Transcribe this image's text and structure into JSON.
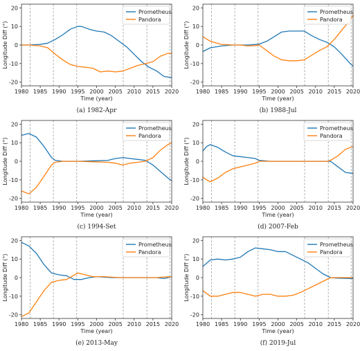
{
  "figure": {
    "colors": {
      "prometheus": "#1f77b4",
      "pandora": "#ff7f0e",
      "event_line": "#a0a0a0"
    },
    "legend_labels": [
      "Prometheus",
      "Pandora"
    ],
    "event_years": [
      1982.3,
      1988.5,
      1994.7,
      2007.1,
      2013.4,
      2019.5
    ]
  },
  "chart_data": [
    {
      "type": "line",
      "caption": "(a) 1982-Apr",
      "xlabel": "Time (year)",
      "ylabel": "Longitude Diff (°)",
      "xlim": [
        1980,
        2020
      ],
      "ylim": [
        -22,
        22
      ],
      "xticks": [
        1980,
        1985,
        1990,
        1995,
        2000,
        2005,
        2010,
        2015,
        2020
      ],
      "yticks": [
        -20,
        -10,
        0,
        10,
        20
      ],
      "legend": "top-right",
      "grid": false,
      "series": [
        {
          "name": "Prometheus",
          "points": [
            [
              1980,
              0
            ],
            [
              1982,
              0
            ],
            [
              1985,
              0.3
            ],
            [
              1987,
              1
            ],
            [
              1989,
              3
            ],
            [
              1991,
              5.5
            ],
            [
              1993,
              8.5
            ],
            [
              1995,
              10
            ],
            [
              1996,
              10
            ],
            [
              1998,
              8.5
            ],
            [
              2000,
              7.5
            ],
            [
              2002,
              7
            ],
            [
              2004,
              5
            ],
            [
              2006,
              2
            ],
            [
              2008,
              -1
            ],
            [
              2010,
              -5
            ],
            [
              2012,
              -9
            ],
            [
              2014,
              -12
            ],
            [
              2016,
              -14
            ],
            [
              2018,
              -17
            ],
            [
              2020,
              -17.5
            ]
          ]
        },
        {
          "name": "Pandora",
          "points": [
            [
              1980,
              0
            ],
            [
              1982,
              0
            ],
            [
              1985,
              -0.5
            ],
            [
              1987,
              -1.5
            ],
            [
              1989,
              -5
            ],
            [
              1991,
              -8
            ],
            [
              1993,
              -10.5
            ],
            [
              1995,
              -11.5
            ],
            [
              1997,
              -12
            ],
            [
              1999,
              -12.5
            ],
            [
              2001,
              -14.5
            ],
            [
              2003,
              -14
            ],
            [
              2005,
              -14.5
            ],
            [
              2007,
              -14
            ],
            [
              2009,
              -12.5
            ],
            [
              2011,
              -11
            ],
            [
              2013,
              -10
            ],
            [
              2015,
              -9
            ],
            [
              2017,
              -6
            ],
            [
              2019,
              -4.5
            ],
            [
              2020,
              -4.5
            ]
          ]
        }
      ]
    },
    {
      "type": "line",
      "caption": "(b) 1988-Jul",
      "xlabel": "Time (year)",
      "ylabel": "Longitude Diff (°)",
      "xlim": [
        1980,
        2020
      ],
      "ylim": [
        -22,
        22
      ],
      "xticks": [
        1980,
        1985,
        1990,
        1995,
        2000,
        2005,
        2010,
        2015,
        2020
      ],
      "yticks": [
        -20,
        -10,
        0,
        10,
        20
      ],
      "legend": "top-right",
      "grid": false,
      "series": [
        {
          "name": "Prometheus",
          "points": [
            [
              1980,
              -3.5
            ],
            [
              1982,
              -1.5
            ],
            [
              1985,
              -0.5
            ],
            [
              1988,
              0
            ],
            [
              1990,
              0
            ],
            [
              1992,
              0
            ],
            [
              1994,
              0.3
            ],
            [
              1995,
              0.5
            ],
            [
              1997,
              2
            ],
            [
              1999,
              4.5
            ],
            [
              2001,
              7
            ],
            [
              2003,
              7.5
            ],
            [
              2005,
              7.5
            ],
            [
              2007,
              7.5
            ],
            [
              2009,
              5
            ],
            [
              2011,
              3
            ],
            [
              2013,
              1.5
            ],
            [
              2015,
              -1
            ],
            [
              2017,
              -5
            ],
            [
              2019,
              -9.5
            ],
            [
              2020,
              -11.5
            ]
          ]
        },
        {
          "name": "Pandora",
          "points": [
            [
              1980,
              4.5
            ],
            [
              1982,
              2
            ],
            [
              1985,
              0.3
            ],
            [
              1988,
              0
            ],
            [
              1990,
              0
            ],
            [
              1992,
              -0.5
            ],
            [
              1994,
              -0.3
            ],
            [
              1995,
              0
            ],
            [
              1997,
              -3
            ],
            [
              1999,
              -6
            ],
            [
              2001,
              -8
            ],
            [
              2003,
              -8.5
            ],
            [
              2005,
              -8.5
            ],
            [
              2007,
              -8
            ],
            [
              2009,
              -5.5
            ],
            [
              2011,
              -3
            ],
            [
              2013,
              -1
            ],
            [
              2015,
              3
            ],
            [
              2017,
              8
            ],
            [
              2019,
              13
            ],
            [
              2020,
              16
            ]
          ]
        }
      ]
    },
    {
      "type": "line",
      "caption": "(c) 1994-Set",
      "xlabel": "Time (year)",
      "ylabel": "Longitude Diff (°)",
      "xlim": [
        1980,
        2020
      ],
      "ylim": [
        -22,
        22
      ],
      "xticks": [
        1980,
        1985,
        1990,
        1995,
        2000,
        2005,
        2010,
        2015,
        2020
      ],
      "yticks": [
        -20,
        -10,
        0,
        10,
        20
      ],
      "legend": "top-right",
      "grid": false,
      "series": [
        {
          "name": "Prometheus",
          "points": [
            [
              1980,
              14
            ],
            [
              1982,
              15
            ],
            [
              1984,
              13
            ],
            [
              1986,
              8
            ],
            [
              1988,
              2
            ],
            [
              1989,
              0.5
            ],
            [
              1991,
              0
            ],
            [
              1995,
              0
            ],
            [
              2000,
              0.3
            ],
            [
              2003,
              0.5
            ],
            [
              2005,
              1.5
            ],
            [
              2007,
              2
            ],
            [
              2009,
              1.5
            ],
            [
              2011,
              1
            ],
            [
              2013,
              0.5
            ],
            [
              2015,
              -2
            ],
            [
              2017,
              -5.5
            ],
            [
              2019,
              -9
            ],
            [
              2020,
              -10.5
            ]
          ]
        },
        {
          "name": "Pandora",
          "points": [
            [
              1980,
              -16
            ],
            [
              1982,
              -17.5
            ],
            [
              1984,
              -14
            ],
            [
              1986,
              -8
            ],
            [
              1988,
              -2
            ],
            [
              1989,
              -0.5
            ],
            [
              1991,
              0
            ],
            [
              1995,
              0
            ],
            [
              2000,
              -0.3
            ],
            [
              2003,
              -0.5
            ],
            [
              2005,
              -1
            ],
            [
              2007,
              -2
            ],
            [
              2009,
              -1
            ],
            [
              2011,
              -0.5
            ],
            [
              2013,
              0
            ],
            [
              2015,
              2
            ],
            [
              2017,
              6
            ],
            [
              2019,
              9
            ],
            [
              2020,
              10
            ]
          ]
        }
      ]
    },
    {
      "type": "line",
      "caption": "(d) 2007-Feb",
      "xlabel": "Time (year)",
      "ylabel": "Longitude Diff (°)",
      "xlim": [
        1980,
        2020
      ],
      "ylim": [
        -22,
        22
      ],
      "xticks": [
        1980,
        1985,
        1990,
        1995,
        2000,
        2005,
        2010,
        2015,
        2020
      ],
      "yticks": [
        -20,
        -10,
        0,
        10,
        20
      ],
      "legend": "top-right",
      "grid": false,
      "series": [
        {
          "name": "Prometheus",
          "points": [
            [
              1980,
              5.5
            ],
            [
              1981,
              8
            ],
            [
              1982,
              9
            ],
            [
              1984,
              7.5
            ],
            [
              1986,
              5
            ],
            [
              1988,
              3
            ],
            [
              1990,
              2.5
            ],
            [
              1992,
              2
            ],
            [
              1994,
              1.5
            ],
            [
              1995,
              0.5
            ],
            [
              1998,
              0
            ],
            [
              2007,
              0
            ],
            [
              2013,
              0
            ],
            [
              2014,
              0
            ],
            [
              2016,
              -3
            ],
            [
              2018,
              -6
            ],
            [
              2020,
              -6.5
            ]
          ]
        },
        {
          "name": "Pandora",
          "points": [
            [
              1980,
              -8.5
            ],
            [
              1981,
              -10
            ],
            [
              1982,
              -11
            ],
            [
              1984,
              -9
            ],
            [
              1986,
              -6
            ],
            [
              1988,
              -4
            ],
            [
              1990,
              -3
            ],
            [
              1992,
              -2
            ],
            [
              1994,
              -1
            ],
            [
              1995,
              0
            ],
            [
              1998,
              0
            ],
            [
              2007,
              0
            ],
            [
              2013,
              0
            ],
            [
              2014,
              0.5
            ],
            [
              2016,
              3
            ],
            [
              2018,
              6.5
            ],
            [
              2020,
              8
            ]
          ]
        }
      ]
    },
    {
      "type": "line",
      "caption": "(e) 2013-May",
      "xlabel": "Time (year)",
      "ylabel": "Longitude Diff (°)",
      "xlim": [
        1980,
        2020
      ],
      "ylim": [
        -22,
        22
      ],
      "xticks": [
        1980,
        1985,
        1990,
        1995,
        2000,
        2005,
        2010,
        2015,
        2020
      ],
      "yticks": [
        -20,
        -10,
        0,
        10,
        20
      ],
      "legend": "top-right",
      "grid": false,
      "series": [
        {
          "name": "Prometheus",
          "points": [
            [
              1980,
              19
            ],
            [
              1982,
              17
            ],
            [
              1984,
              13
            ],
            [
              1986,
              7
            ],
            [
              1988,
              2.5
            ],
            [
              1990,
              1.5
            ],
            [
              1992,
              1
            ],
            [
              1994,
              -1
            ],
            [
              1996,
              -1
            ],
            [
              1998,
              0
            ],
            [
              2000,
              0.5
            ],
            [
              2004,
              0
            ],
            [
              2010,
              0
            ],
            [
              2016,
              0
            ],
            [
              2018,
              -0.5
            ],
            [
              2020,
              0.5
            ]
          ]
        },
        {
          "name": "Pandora",
          "points": [
            [
              1980,
              -21
            ],
            [
              1982,
              -19
            ],
            [
              1984,
              -13
            ],
            [
              1986,
              -7
            ],
            [
              1988,
              -2.5
            ],
            [
              1990,
              -1.5
            ],
            [
              1992,
              -1
            ],
            [
              1995,
              2.5
            ],
            [
              1997,
              1.5
            ],
            [
              1999,
              0.5
            ],
            [
              2002,
              0.5
            ],
            [
              2006,
              0
            ],
            [
              2010,
              0
            ],
            [
              2016,
              0
            ],
            [
              2018,
              0.3
            ],
            [
              2020,
              0.5
            ]
          ]
        }
      ]
    },
    {
      "type": "line",
      "caption": "(f) 2019-Jul",
      "xlabel": "Time (year)",
      "ylabel": "Longitude Diff (°)",
      "xlim": [
        1980,
        2020
      ],
      "ylim": [
        -22,
        22
      ],
      "xticks": [
        1980,
        1985,
        1990,
        1995,
        2000,
        2005,
        2010,
        2015,
        2020
      ],
      "yticks": [
        -20,
        -10,
        0,
        10,
        20
      ],
      "legend": "top-right",
      "grid": false,
      "series": [
        {
          "name": "Prometheus",
          "points": [
            [
              1980,
              6
            ],
            [
              1982,
              9.5
            ],
            [
              1984,
              10
            ],
            [
              1986,
              9.5
            ],
            [
              1988,
              10
            ],
            [
              1990,
              11
            ],
            [
              1992,
              14
            ],
            [
              1994,
              16
            ],
            [
              1996,
              15.5
            ],
            [
              1998,
              15
            ],
            [
              2000,
              14
            ],
            [
              2002,
              14
            ],
            [
              2004,
              12
            ],
            [
              2006,
              10
            ],
            [
              2008,
              8
            ],
            [
              2010,
              5
            ],
            [
              2012,
              2
            ],
            [
              2014,
              0
            ],
            [
              2016,
              -0.3
            ],
            [
              2020,
              -0.5
            ]
          ]
        },
        {
          "name": "Pandora",
          "points": [
            [
              1980,
              -7
            ],
            [
              1982,
              -10
            ],
            [
              1984,
              -10
            ],
            [
              1986,
              -9
            ],
            [
              1988,
              -8
            ],
            [
              1990,
              -8
            ],
            [
              1992,
              -9
            ],
            [
              1994,
              -10
            ],
            [
              1996,
              -9
            ],
            [
              1998,
              -9
            ],
            [
              2000,
              -10
            ],
            [
              2002,
              -10
            ],
            [
              2004,
              -9.5
            ],
            [
              2006,
              -8
            ],
            [
              2008,
              -6
            ],
            [
              2010,
              -4
            ],
            [
              2012,
              -2
            ],
            [
              2014,
              0
            ],
            [
              2016,
              0
            ],
            [
              2020,
              0
            ]
          ]
        }
      ]
    }
  ]
}
